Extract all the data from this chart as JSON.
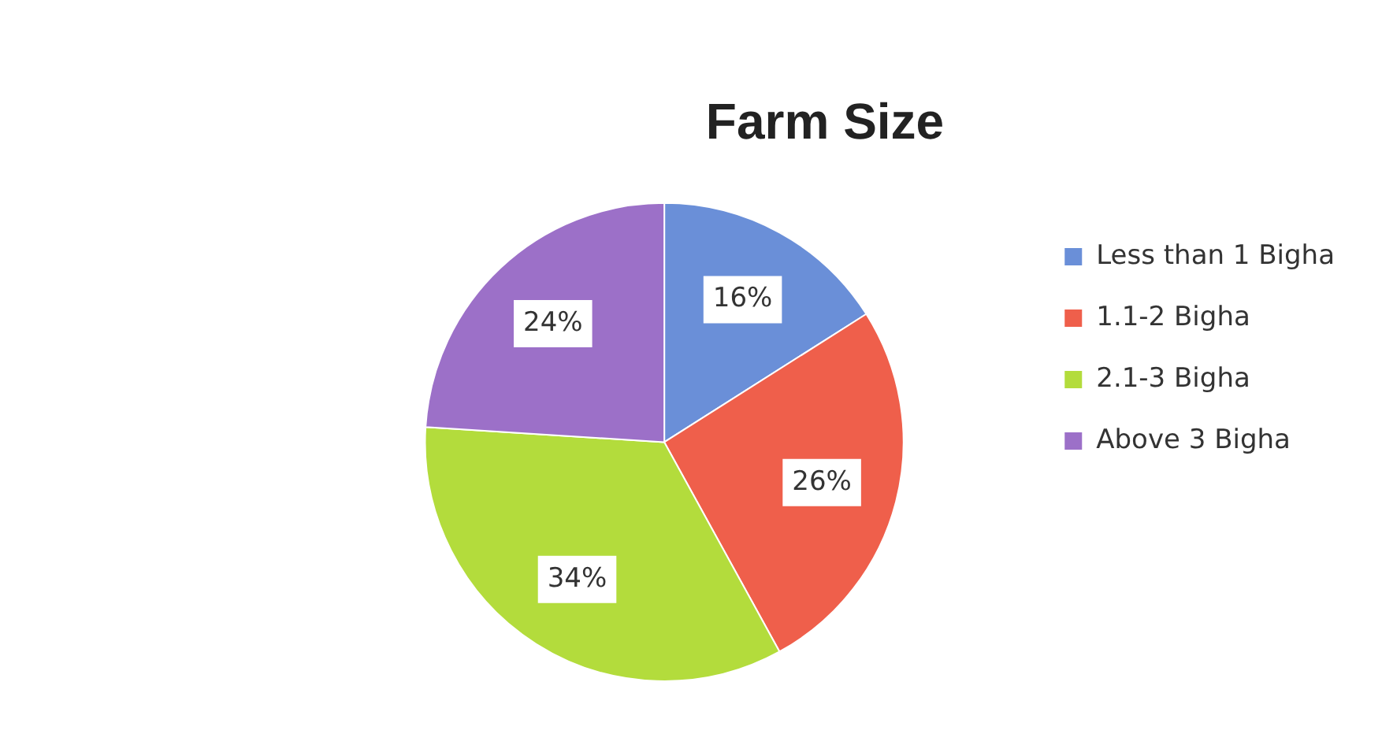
{
  "chart_data": {
    "type": "pie",
    "title": "Farm Size",
    "categories": [
      "Less than 1 Bigha",
      "1.1-2 Bigha",
      "2.1-3 Bigha",
      "Above 3 Bigha"
    ],
    "values": [
      16,
      26,
      34,
      24
    ],
    "value_labels": [
      "16%",
      "26%",
      "34%",
      "24%"
    ],
    "colors": [
      "#6a8fd8",
      "#ef5f4b",
      "#b3dc3c",
      "#9c70c8"
    ],
    "legend": "right"
  }
}
